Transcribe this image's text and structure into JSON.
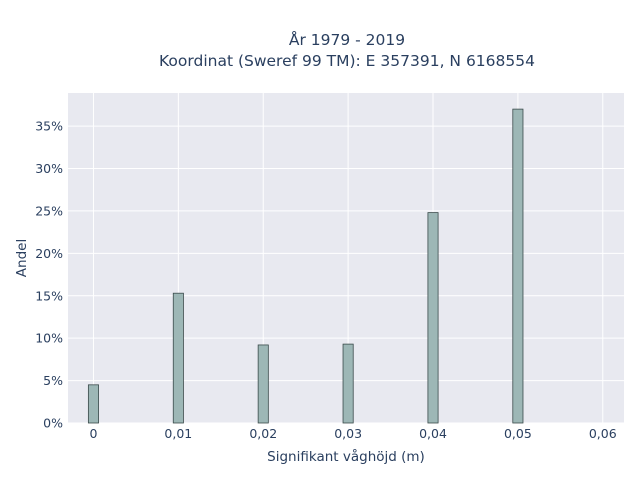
{
  "chart_data": {
    "type": "bar",
    "title_lines": [
      "År 1979 - 2019",
      "Koordinat (Sweref 99 TM): E 357391, N 6168554"
    ],
    "xlabel": "Signifikant våghöjd (m)",
    "ylabel": "Andel",
    "x_tick_labels": [
      "0",
      "0,01",
      "0,02",
      "0,03",
      "0,04",
      "0,05",
      "0,06"
    ],
    "x_ticks": [
      0,
      0.01,
      0.02,
      0.03,
      0.04,
      0.05,
      0.06
    ],
    "y_tick_labels": [
      "0%",
      "5%",
      "10%",
      "15%",
      "20%",
      "25%",
      "30%",
      "35%"
    ],
    "y_ticks": [
      0,
      5,
      10,
      15,
      20,
      25,
      30,
      35
    ],
    "xlim": [
      -0.003,
      0.0625
    ],
    "ylim": [
      0,
      38.9
    ],
    "bar_width": 0.0012,
    "x": [
      0,
      0.01,
      0.02,
      0.03,
      0.04,
      0.05
    ],
    "values": [
      4.5,
      15.3,
      9.2,
      9.3,
      24.8,
      37.0
    ],
    "bar_color": "#9db7b6",
    "bar_edge_color": "#3a4a4a",
    "plot_bg_color": "#e8e9f0",
    "grid": true
  }
}
